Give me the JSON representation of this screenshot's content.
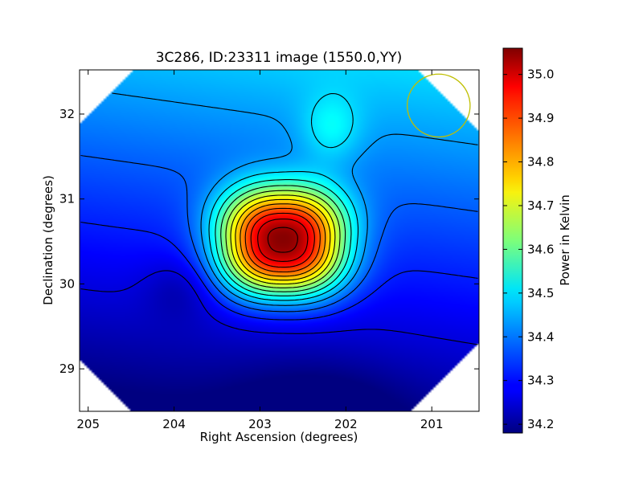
{
  "chart_data": {
    "type": "heatmap",
    "title": "3C286, ID:23311 image (1550.0,YY)",
    "xlabel": "Right Ascension (degrees)",
    "ylabel": "Declination (degrees)",
    "xlim": [
      205.1,
      200.45
    ],
    "ylim": [
      28.5,
      32.52
    ],
    "x_ticks": [
      "205",
      "204",
      "203",
      "202",
      "201"
    ],
    "x_tick_values": [
      205,
      204,
      203,
      202,
      201
    ],
    "y_ticks": [
      "29",
      "30",
      "31",
      "32"
    ],
    "y_tick_values": [
      29,
      30,
      31,
      32
    ],
    "colorbar": {
      "label": "Power in Kelvin",
      "colormap": "jet",
      "range": [
        34.18,
        35.06
      ],
      "ticks": [
        "34.2",
        "34.3",
        "34.4",
        "34.5",
        "34.6",
        "34.7",
        "34.8",
        "34.9",
        "35.0"
      ],
      "tick_values": [
        34.2,
        34.3,
        34.4,
        34.5,
        34.6,
        34.7,
        34.8,
        34.9,
        35.0
      ]
    },
    "peak": {
      "ra": 202.74,
      "dec": 30.49,
      "value": 35.05
    },
    "secondary_max": {
      "ra": 202.17,
      "dec": 31.82,
      "value": 34.42
    },
    "local_min": {
      "ra": 203.92,
      "dec": 29.95,
      "value": 34.24
    },
    "beam": {
      "ra": 200.92,
      "dec": 32.1,
      "radius_deg": 0.37,
      "color": "#bfbf00"
    },
    "contour_color": "#000000"
  }
}
